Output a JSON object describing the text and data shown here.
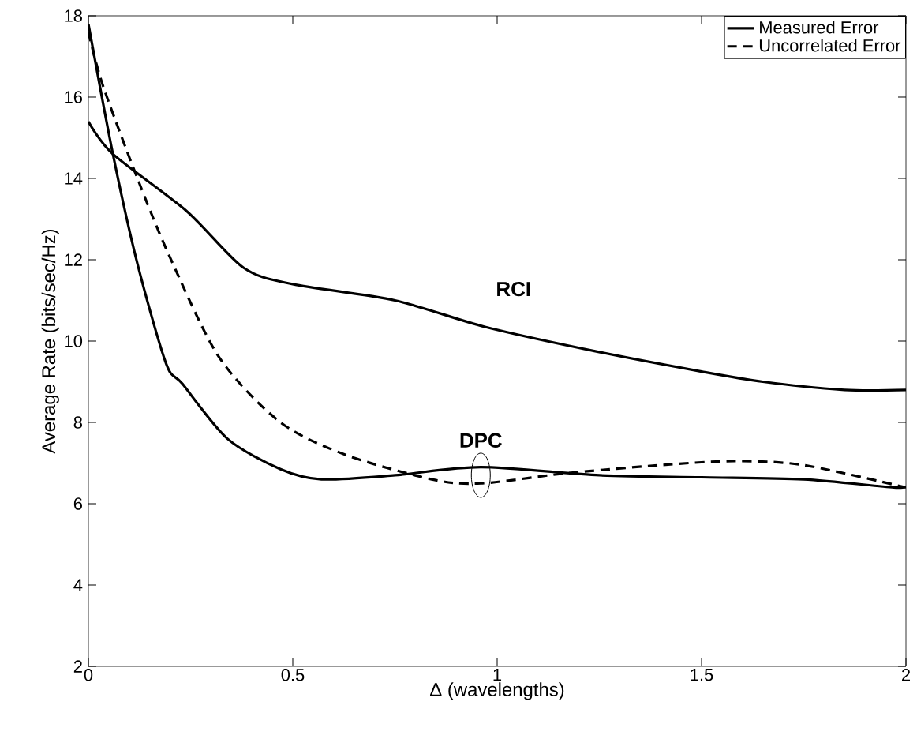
{
  "chart_data": {
    "type": "line",
    "xlabel": "Δ (wavelengths)",
    "ylabel": "Average Rate (bits/sec/Hz)",
    "xlim": [
      0,
      2
    ],
    "ylim": [
      2,
      18
    ],
    "xticks": [
      0,
      0.5,
      1,
      1.5,
      2
    ],
    "yticks": [
      2,
      4,
      6,
      8,
      10,
      12,
      14,
      16,
      18
    ],
    "grid": false,
    "legend": "top right",
    "marker": "none",
    "series": [
      {
        "name": "Measured Error",
        "color": "#000000",
        "line_style": "solid",
        "x": [
          0,
          0.06,
          0.24,
          0.38,
          0.5,
          0.75,
          0.97,
          1.24,
          1.5,
          1.65,
          1.85,
          2
        ],
        "values": [
          15.4,
          14.6,
          13.2,
          11.8,
          11.4,
          11.0,
          10.35,
          9.75,
          9.25,
          9.0,
          8.8,
          8.8
        ]
      },
      {
        "name": "Uncorrelated Error",
        "color": "#000000",
        "line_style": "dashed",
        "x": [
          0,
          0.035,
          0.12,
          0.2,
          0.32,
          0.47,
          0.63,
          0.84,
          0.96,
          1.17,
          1.4,
          1.58,
          1.75,
          2
        ],
        "values": [
          17.6,
          16.3,
          14.0,
          12.05,
          9.6,
          8.0,
          7.2,
          6.6,
          6.5,
          6.75,
          6.95,
          7.05,
          6.95,
          6.4
        ]
      },
      {
        "color": "#000000",
        "line_style": "solid",
        "x": [
          0,
          0.06,
          0.12,
          0.19,
          0.23,
          0.34,
          0.47,
          0.57,
          0.75,
          0.96,
          1.25,
          1.5,
          1.75,
          1.97,
          2
        ],
        "values": [
          17.8,
          14.6,
          11.9,
          9.45,
          8.95,
          7.6,
          6.85,
          6.6,
          6.7,
          6.9,
          6.7,
          6.65,
          6.6,
          6.4,
          6.45
        ]
      }
    ],
    "annotations": [
      "RCI",
      {
        "text": "DPC",
        "x": 0.96,
        "y": 6.7
      }
    ]
  }
}
